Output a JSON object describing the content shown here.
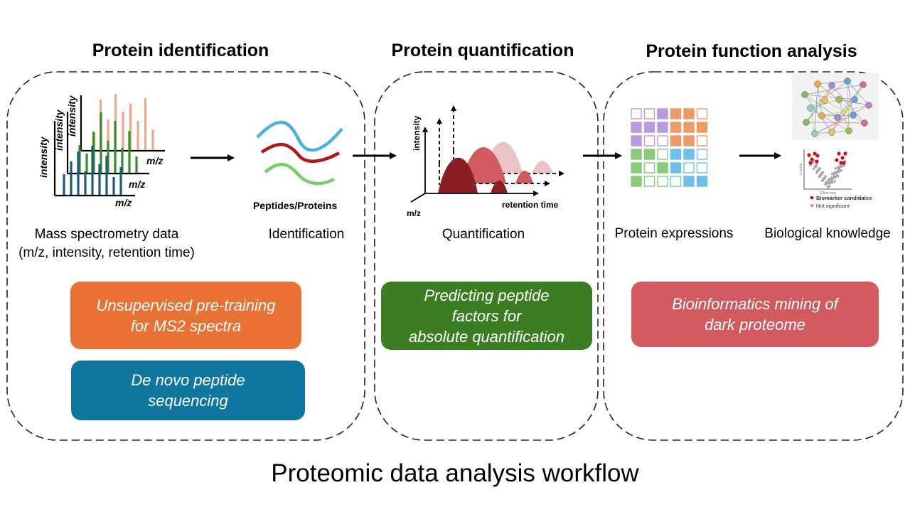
{
  "stages": [
    {
      "title": "Protein identification"
    },
    {
      "title": "Protein quantification"
    },
    {
      "title": "Protein function analysis"
    }
  ],
  "captions": {
    "ms_data": [
      "Mass spectrometry data",
      "(m/z, intensity, retention time)"
    ],
    "identification": "Identification",
    "quantification": "Quantification",
    "protein_expressions": "Protein expressions",
    "biological_knowledge": "Biological knowledge"
  },
  "plot_labels": {
    "intensity": "intensity",
    "mz": "m/z",
    "peptides_proteins": "Peptides/Proteins",
    "retention_time": "retention time",
    "biomarker_candidates": "Biomarker candidates",
    "not_significant": "Not significant",
    "effect_size": "Effect size",
    "p_value": "p-value"
  },
  "tasks": [
    {
      "lines": [
        "Unsupervised pre-training",
        "for MS2 spectra"
      ],
      "color": "#E97133"
    },
    {
      "lines": [
        "De novo peptide",
        "sequencing"
      ],
      "color": "#0F76A0"
    },
    {
      "lines": [
        "Predicting peptide",
        "factors for",
        "absolute quantification"
      ],
      "color": "#3B7D23"
    },
    {
      "lines": [
        "Bioinformatics mining of",
        "dark proteome"
      ],
      "color": "#D35A5E"
    }
  ],
  "main_title": "Proteomic data analysis workflow",
  "colors": {
    "spectrum_back": "#F0A883",
    "spectrum_mid": "#3A8A2E",
    "spectrum_front": "#1F5A78",
    "curve_blue": "#4FB0E0",
    "curve_red": "#B01818",
    "curve_green": "#7ACC6A",
    "peak_dark": "#8B1E22",
    "peak_mid": "#D05A5E",
    "peak_light": "#EBC3C3",
    "grid_purple": "#B99BDB",
    "grid_orange": "#EE9A66",
    "grid_green": "#8ACB7A",
    "grid_blue": "#6EBFEA",
    "volcano_red": "#C8101E"
  }
}
